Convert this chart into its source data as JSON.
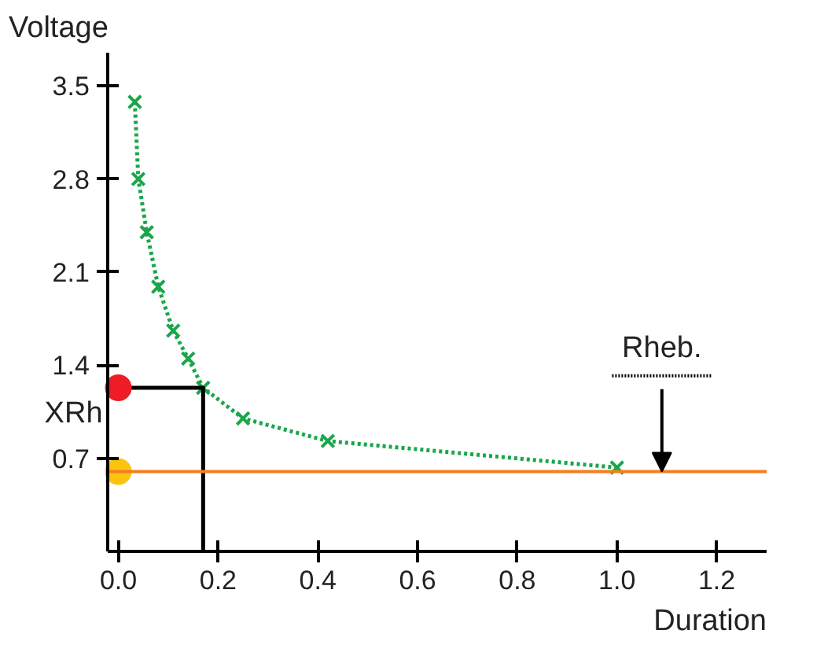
{
  "chart_data": {
    "type": "line",
    "xlabel": "Duration",
    "ylabel": "Voltage",
    "xlim": [
      -0.02,
      1.3
    ],
    "ylim": [
      0,
      3.75
    ],
    "xticks": [
      {
        "value": 0,
        "label": "0.0"
      },
      0.2,
      0.4,
      0.6,
      0.8,
      {
        "value": 1,
        "label": "1.0"
      },
      1.2
    ],
    "yticks": [
      0.7,
      1.4,
      2.1,
      2.8,
      3.5
    ],
    "grid": false,
    "series": [
      {
        "type": "line",
        "marker": "cross",
        "line_style": "dotted",
        "color": "#1aa64b",
        "x": [
          0.033,
          0.04,
          0.057,
          0.08,
          0.11,
          0.14,
          0.17,
          0.25,
          0.42,
          1.0
        ],
        "values": [
          3.38,
          2.8,
          2.4,
          1.99,
          1.66,
          1.45,
          1.23,
          1.0,
          0.83,
          0.63
        ]
      },
      {
        "type": "line",
        "marker": "none",
        "line_style": "solid",
        "color": "#000000",
        "x": [
          0,
          0.17,
          0.17
        ],
        "values": [
          1.23,
          1.23,
          0
        ]
      },
      {
        "type": "scatter",
        "marker": "circle",
        "color": "#ee1c25",
        "x": [
          0
        ],
        "values": [
          1.23
        ]
      },
      {
        "type": "scatter",
        "marker": "circle",
        "color": "#fcc30f",
        "x": [
          0
        ],
        "values": [
          0.6
        ]
      }
    ],
    "ref_lines": [
      {
        "axis": "y",
        "value": 0.6,
        "color": "#f47f20",
        "line_style": "solid"
      }
    ],
    "annotations": [
      {
        "text": "XRh",
        "x": 0,
        "y": 1.23
      },
      {
        "text": "Rheb.",
        "x": 1.09,
        "y": 0.6
      }
    ]
  }
}
